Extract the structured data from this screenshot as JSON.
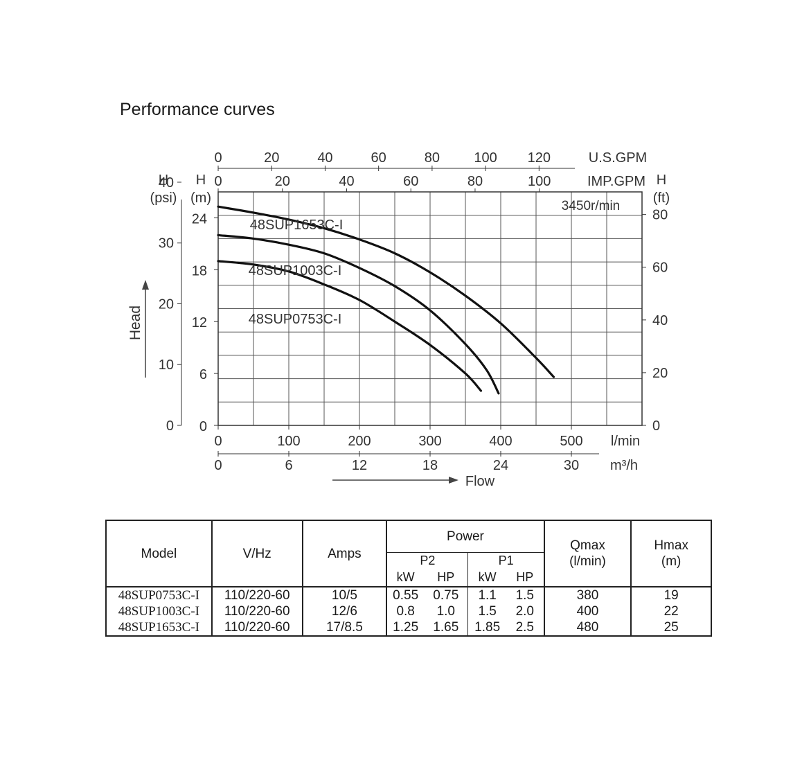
{
  "title": "Performance curves",
  "chart_data": {
    "type": "line",
    "speed": "3450r/min",
    "axis_y_psi": {
      "label": "H",
      "unit": "(psi)",
      "ticks": [
        "0",
        "10",
        "20",
        "30",
        "40"
      ],
      "range": [
        0,
        40
      ]
    },
    "axis_y_m": {
      "label": "H",
      "unit": "(m)",
      "ticks": [
        "0",
        "6",
        "12",
        "18",
        "24"
      ],
      "range": [
        0,
        27
      ]
    },
    "axis_y_ft": {
      "label": "H",
      "unit": "(ft)",
      "ticks": [
        "0",
        "20",
        "40",
        "60",
        "80"
      ]
    },
    "axis_x_lmin": {
      "unit": "l/min",
      "ticks": [
        "0",
        "100",
        "200",
        "300",
        "400",
        "500"
      ],
      "range": [
        0,
        600
      ]
    },
    "axis_x_m3h": {
      "unit": "m³/h",
      "ticks": [
        "0",
        "6",
        "12",
        "18",
        "24",
        "30"
      ]
    },
    "axis_x_usgpm": {
      "unit": "U.S.GPM",
      "ticks": [
        "0",
        "20",
        "40",
        "60",
        "80",
        "100",
        "120"
      ]
    },
    "axis_x_impgpm": {
      "unit": "IMP.GPM",
      "ticks": [
        "0",
        "20",
        "40",
        "60",
        "80",
        "100"
      ]
    },
    "y_side_label": "Head",
    "x_bottom_label": "Flow",
    "grid": true,
    "series": [
      {
        "name": "48SUP1653C-I",
        "x": [
          0,
          50,
          100,
          150,
          200,
          250,
          300,
          350,
          400,
          450,
          475
        ],
        "y": [
          25.3,
          24.6,
          23.8,
          22.8,
          21.5,
          19.9,
          17.7,
          15.0,
          11.8,
          7.8,
          5.6
        ]
      },
      {
        "name": "48SUP1003C-I",
        "x": [
          0,
          50,
          100,
          150,
          200,
          250,
          300,
          350,
          380,
          397
        ],
        "y": [
          22.0,
          21.6,
          20.9,
          19.9,
          18.2,
          16.1,
          13.3,
          9.4,
          6.4,
          3.7
        ]
      },
      {
        "name": "48SUP0753C-I",
        "x": [
          0,
          50,
          100,
          150,
          200,
          250,
          300,
          350,
          372
        ],
        "y": [
          19.0,
          18.6,
          17.8,
          16.3,
          14.5,
          12.0,
          9.3,
          6.0,
          4.0
        ]
      }
    ],
    "label_color": "#e0141e"
  },
  "table": {
    "headers": {
      "model": "Model",
      "vhz": "V/Hz",
      "amps": "Amps",
      "power": "Power",
      "p2": "P2",
      "p1": "P1",
      "kw": "kW",
      "hp": "HP",
      "qmax": "Qmax",
      "qmax_unit": "(l/min)",
      "hmax": "Hmax",
      "hmax_unit": "(m)"
    },
    "rows": [
      {
        "model": "48SUP0753C-I",
        "vhz": "110/220-60",
        "amps": "10/5",
        "p2_kw": "0.55",
        "p2_hp": "0.75",
        "p1_kw": "1.1",
        "p1_hp": "1.5",
        "qmax": "380",
        "hmax": "19"
      },
      {
        "model": "48SUP1003C-I",
        "vhz": "110/220-60",
        "amps": "12/6",
        "p2_kw": "0.8",
        "p2_hp": "1.0",
        "p1_kw": "1.5",
        "p1_hp": "2.0",
        "qmax": "400",
        "hmax": "22"
      },
      {
        "model": "48SUP1653C-I",
        "vhz": "110/220-60",
        "amps": "17/8.5",
        "p2_kw": "1.25",
        "p2_hp": "1.65",
        "p1_kw": "1.85",
        "p1_hp": "2.5",
        "qmax": "480",
        "hmax": "25"
      }
    ]
  }
}
